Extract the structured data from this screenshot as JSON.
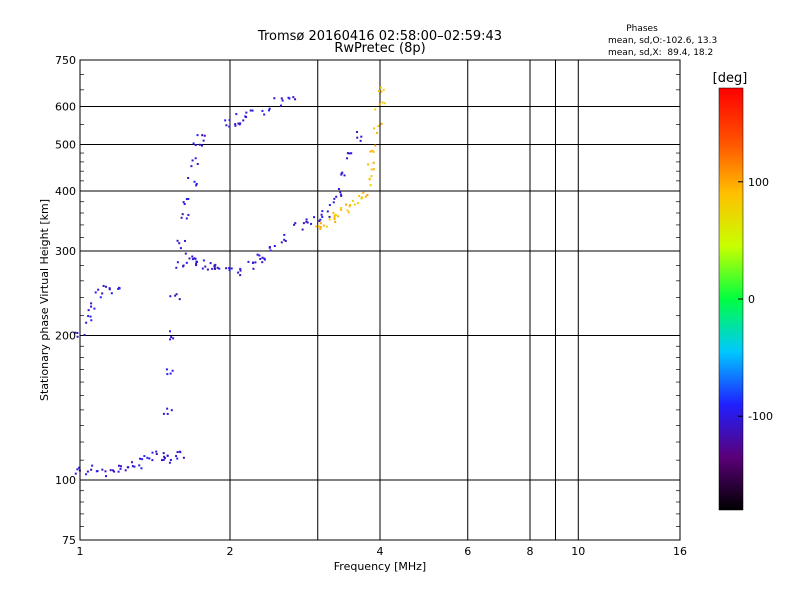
{
  "chart_data": {
    "type": "scatter",
    "title": "Tromsø 20160416 02:58:00–02:59:43",
    "subtitle": "RwPretec (8p)",
    "xlabel": "Frequency [MHz]",
    "ylabel": "Stationary phase Virtual Height [km]",
    "x_scale": "log",
    "y_scale": "log",
    "xlim": [
      1,
      16
    ],
    "ylim": [
      75,
      750
    ],
    "x_ticks": [
      1,
      2,
      4,
      6,
      8,
      10,
      16
    ],
    "x_tick_labels": [
      "1",
      "2",
      "4",
      "6",
      "8",
      "10",
      "16"
    ],
    "x_grid": [
      1,
      2,
      3,
      4,
      6,
      8,
      9,
      10,
      16
    ],
    "y_ticks": [
      75,
      100,
      200,
      300,
      400,
      500,
      600,
      750
    ],
    "y_tick_labels": [
      "75",
      "100",
      "200",
      "300",
      "400",
      "500",
      "600",
      "750"
    ],
    "grid": true,
    "phase_info": {
      "title": "Phases",
      "line_o": "mean, sd,O:-102.6, 13.3",
      "line_x": "mean, sd,X:  89.4, 18.2"
    },
    "colorbar": {
      "label": "[deg]",
      "range": [
        -180,
        180
      ],
      "ticks": [
        100,
        0,
        -100
      ],
      "tick_labels": [
        "100",
        "0",
        "-100"
      ],
      "colors": [
        "#000000",
        "#5a0078",
        "#2020ff",
        "#00c8ff",
        "#00ff40",
        "#c8ff00",
        "#ffc000",
        "#ff5000",
        "#ff0000"
      ]
    },
    "o_trace_phase": -102.6,
    "x_trace_phase": 89.4,
    "series": [
      {
        "x": [
          1.0,
          1.05,
          1.1,
          1.15,
          1.2,
          1.25,
          1.3,
          1.35,
          1.4,
          1.45,
          1.5,
          1.55,
          1.6
        ],
        "y": [
          105,
          105,
          104,
          104,
          105,
          106,
          108,
          110,
          112,
          112,
          110,
          110,
          112
        ]
      },
      {
        "x": [
          1.5,
          1.5,
          1.52,
          1.55,
          1.58,
          1.6,
          1.62,
          1.65,
          1.68,
          1.7,
          1.72,
          1.75
        ],
        "y": [
          140,
          170,
          200,
          240,
          280,
          310,
          350,
          380,
          420,
          460,
          500,
          520
        ]
      },
      {
        "x": [
          1.65,
          1.7,
          1.75,
          1.8,
          1.85,
          1.9,
          2.0,
          2.1,
          2.2,
          2.3
        ],
        "y": [
          290,
          285,
          282,
          280,
          278,
          276,
          274,
          272,
          278,
          288
        ]
      },
      {
        "x": [
          2.3,
          2.45,
          2.6,
          2.75,
          2.9,
          3.0,
          3.1,
          3.2,
          3.3,
          3.4,
          3.5,
          3.6
        ],
        "y": [
          292,
          305,
          320,
          335,
          345,
          350,
          360,
          380,
          400,
          430,
          470,
          520
        ]
      },
      {
        "x": [
          3.0,
          3.1,
          3.2,
          3.3,
          3.4,
          3.5,
          3.6,
          3.7,
          3.8,
          3.85,
          3.9,
          3.95,
          4.0,
          4.02
        ],
        "y": [
          340,
          345,
          350,
          355,
          362,
          370,
          380,
          395,
          420,
          450,
          490,
          540,
          600,
          650
        ]
      },
      {
        "x": [
          1.0,
          1.03,
          1.06,
          1.1,
          1.14,
          1.18
        ],
        "y": [
          200,
          215,
          230,
          245,
          255,
          250
        ]
      },
      {
        "x": [
          2.0,
          2.05,
          2.1,
          2.2,
          2.35,
          2.5,
          2.65
        ],
        "y": [
          555,
          560,
          565,
          575,
          590,
          610,
          635
        ]
      }
    ]
  }
}
